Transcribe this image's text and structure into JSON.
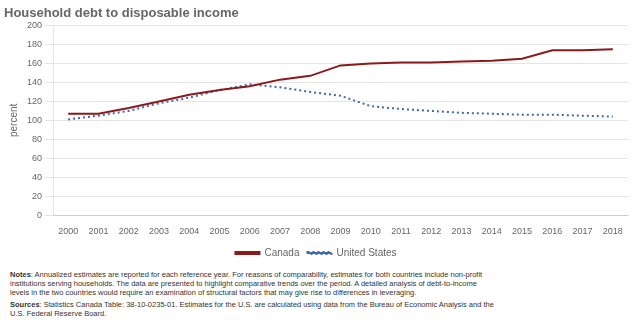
{
  "chart_data": {
    "type": "line",
    "title": "Household debt to disposable income",
    "y_label": "percent",
    "x": [
      2000,
      2001,
      2002,
      2003,
      2004,
      2005,
      2006,
      2007,
      2008,
      2009,
      2010,
      2011,
      2012,
      2013,
      2014,
      2015,
      2016,
      2017,
      2018
    ],
    "series": [
      {
        "name": "Canada",
        "color": "#8B1A1A",
        "line_style": "solid",
        "values": [
          107,
          107,
          113,
          120,
          127,
          132,
          136,
          143,
          147,
          158,
          160,
          161,
          161,
          162,
          163,
          165,
          174,
          174,
          175
        ]
      },
      {
        "name": "United States",
        "color": "#4169B0",
        "line_style": "dotted",
        "values": [
          101,
          105,
          110,
          118,
          124,
          132,
          138,
          135,
          130,
          126,
          115,
          112,
          110,
          108,
          107,
          106,
          106,
          105,
          104
        ]
      }
    ],
    "xlim": [
      1999.5,
      2018.5
    ],
    "xticks": [
      2000,
      2001,
      2002,
      2003,
      2004,
      2005,
      2006,
      2007,
      2008,
      2009,
      2010,
      2011,
      2012,
      2013,
      2014,
      2015,
      2016,
      2017,
      2018
    ],
    "ylim": [
      0,
      200
    ],
    "yticks": [
      0,
      20,
      40,
      60,
      80,
      100,
      120,
      140,
      160,
      180,
      200
    ],
    "grid": "y",
    "legend": "bottom",
    "annotations": [
      {
        "bold": "Notes",
        "text": ": Annualized estimates are reported for each reference year. For reasons of comparability, estimates for both countries include non-profit\ninstitutions serving households. The data are presented to highlight comparative trends over the period. A detailed analysis of debt-to-income\nlevels in the two countries would require an examination of structural factors that may give rise to differences in leveraging."
      },
      {
        "bold": "Sources",
        "text": ": Statistics Canada Table: 38-10-0235-01. Estimates for the U.S. are calculated using data from the Bureau of Economic Analysis and the\nU.S. Federal Reserve Board."
      }
    ]
  }
}
